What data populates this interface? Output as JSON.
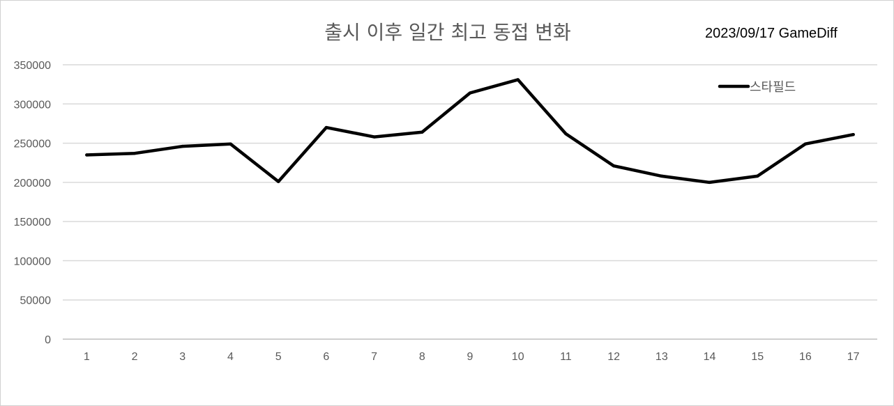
{
  "chart": {
    "title": "출시 이후 일간 최고 동접 변화",
    "source": "2023/09/17 GameDiff"
  },
  "chart_data": {
    "type": "line",
    "title": "출시 이후 일간 최고 동접 변화",
    "annotation": "2023/09/17 GameDiff",
    "xlabel": "",
    "ylabel": "",
    "categories": [
      "1",
      "2",
      "3",
      "4",
      "5",
      "6",
      "7",
      "8",
      "9",
      "10",
      "11",
      "12",
      "13",
      "14",
      "15",
      "16",
      "17"
    ],
    "series": [
      {
        "name": "스타필드",
        "color": "#000000",
        "values": [
          235000,
          237000,
          246000,
          249000,
          201000,
          270000,
          258000,
          264000,
          314000,
          331000,
          262000,
          221000,
          208000,
          200000,
          208000,
          249000,
          261000
        ]
      }
    ],
    "yticks": [
      "0",
      "50000",
      "100000",
      "150000",
      "200000",
      "250000",
      "300000",
      "350000"
    ],
    "ylim": [
      0,
      350000
    ],
    "grid": true,
    "legend_position": "top-right"
  }
}
